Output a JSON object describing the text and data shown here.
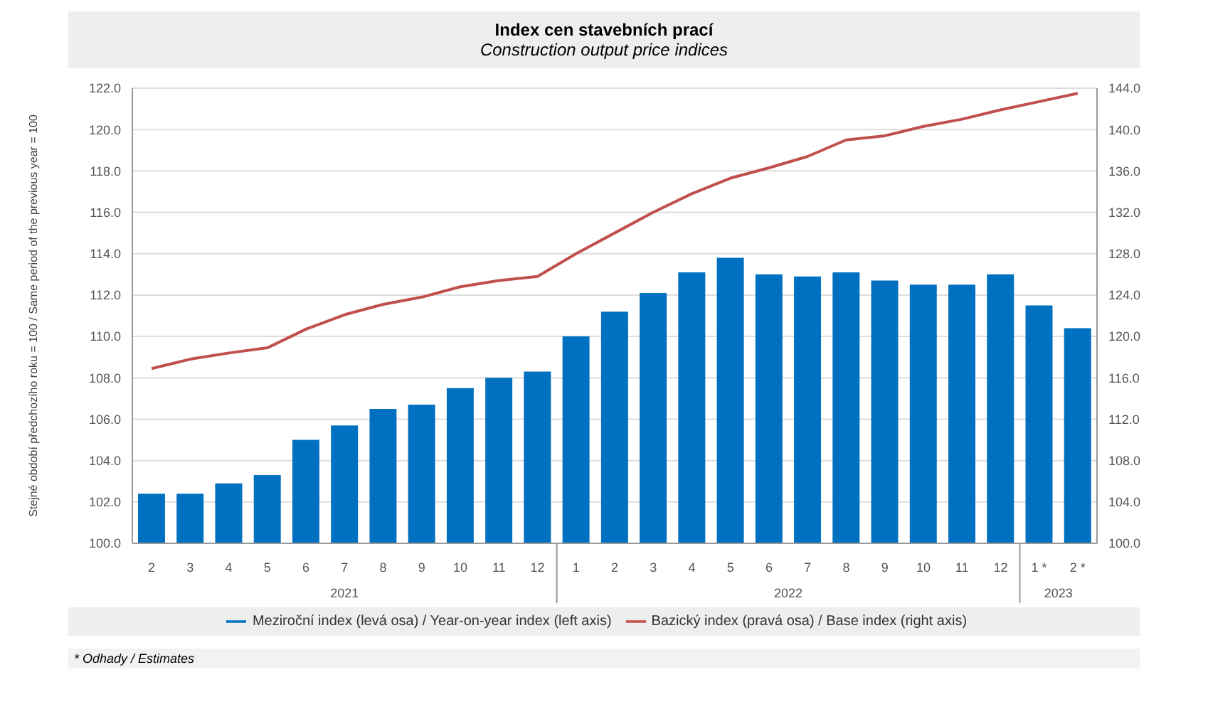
{
  "chart_data": {
    "type": "bar",
    "title": "Index cen stavebních prací",
    "subtitle": "Construction output price indices",
    "ylabel": "Stejné období předchozího roku = 100 / Same period of the previous year = 100",
    "categories": [
      "2",
      "3",
      "4",
      "5",
      "6",
      "7",
      "8",
      "9",
      "10",
      "11",
      "12",
      "1",
      "2",
      "3",
      "4",
      "5",
      "6",
      "7",
      "8",
      "9",
      "10",
      "11",
      "12",
      "1 *",
      "2 *"
    ],
    "series": [
      {
        "name": "Meziroční index (levá osa) / Year-on-year index (left axis)",
        "color": "#0070c0",
        "values": [
          102.4,
          102.4,
          102.9,
          103.3,
          105.0,
          105.7,
          106.5,
          106.7,
          107.5,
          108.0,
          108.3,
          110.0,
          111.2,
          112.1,
          113.1,
          113.8,
          113.0,
          112.9,
          113.1,
          112.7,
          112.5,
          112.5,
          113.0,
          111.5,
          110.4
        ]
      },
      {
        "name": "Bazický index (pravá osa) / Base index (right axis)",
        "type": "line",
        "axis": "y2",
        "color": "#c0504d",
        "values": [
          116.9,
          117.8,
          118.4,
          118.9,
          120.7,
          122.1,
          123.1,
          123.8,
          124.8,
          125.4,
          125.8,
          128.0,
          130.0,
          132.0,
          133.8,
          135.3,
          136.3,
          137.4,
          139.0,
          139.4,
          140.3,
          141.0,
          141.9,
          142.7,
          143.5
        ]
      }
    ],
    "ylim": [
      100,
      122
    ],
    "yticks": [
      {
        "value": 100,
        "label": "100.0"
      },
      {
        "value": 102,
        "label": "102.0"
      },
      {
        "value": 104,
        "label": "104.0"
      },
      {
        "value": 106,
        "label": "106.0"
      },
      {
        "value": 108,
        "label": "108.0"
      },
      {
        "value": 110,
        "label": "110.0"
      },
      {
        "value": 112,
        "label": "112.0"
      },
      {
        "value": 114,
        "label": "114.0"
      },
      {
        "value": 116,
        "label": "116.0"
      },
      {
        "value": 118,
        "label": "118.0"
      },
      {
        "value": 120,
        "label": "120.0"
      },
      {
        "value": 122,
        "label": "122.0"
      }
    ],
    "y2lim": [
      100,
      144
    ],
    "y2ticks": [
      {
        "value": 100,
        "label": "100.0"
      },
      {
        "value": 104,
        "label": "104.0"
      },
      {
        "value": 108,
        "label": "108.0"
      },
      {
        "value": 112,
        "label": "112.0"
      },
      {
        "value": 116,
        "label": "116.0"
      },
      {
        "value": 120,
        "label": "120.0"
      },
      {
        "value": 124,
        "label": "124.0"
      },
      {
        "value": 128,
        "label": "128.0"
      },
      {
        "value": 132,
        "label": "132.0"
      },
      {
        "value": 136,
        "label": "136.0"
      },
      {
        "value": 140,
        "label": "140.0"
      },
      {
        "value": 144,
        "label": "144.0"
      }
    ],
    "grid": "y",
    "legend": "bottom",
    "marker": "none",
    "line_style": "solid",
    "annotations": [
      "2021",
      "2022",
      "2023",
      "* Odhady / Estimates"
    ]
  }
}
